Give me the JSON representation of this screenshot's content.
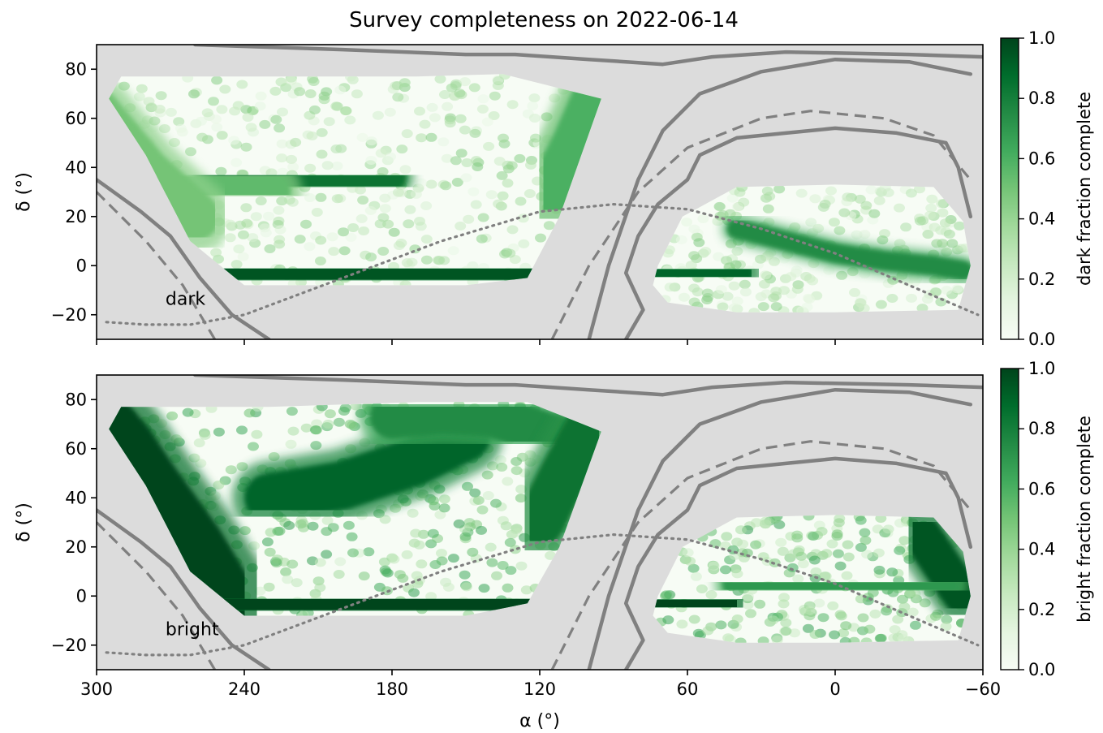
{
  "chart_data": {
    "type": "heatmap",
    "title": "Survey completeness on 2022-06-14",
    "xlabel": "α (°)",
    "xlim": [
      300,
      -60
    ],
    "xticks": [
      300,
      240,
      180,
      120,
      60,
      0,
      -60
    ],
    "xtick_labels": [
      "300",
      "240",
      "180",
      "120",
      "60",
      "0",
      "−60"
    ],
    "colorbar_ticks": [
      0.0,
      0.2,
      0.4,
      0.6,
      0.8,
      1.0
    ],
    "colorbar_tick_labels": [
      "0.0",
      "0.2",
      "0.4",
      "0.6",
      "0.8",
      "1.0"
    ],
    "colormap": [
      "#f7fcf5",
      "#e5f5e0",
      "#c7e9c0",
      "#a1d99b",
      "#74c476",
      "#41ab5d",
      "#238b45",
      "#006d2c",
      "#00441b"
    ],
    "background_color": "#dcdcdc",
    "contour_color": "#808080",
    "panels": [
      {
        "label": "dark",
        "ylabel": "δ (°)",
        "ylim": [
          -30,
          90
        ],
        "yticks": [
          -20,
          0,
          20,
          40,
          60,
          80
        ],
        "ytick_labels": [
          "−20",
          "0",
          "20",
          "40",
          "60",
          "80"
        ],
        "colorbar_label": "dark fraction complete",
        "regions": {
          "ngc_outline": [
            [
              295,
              68
            ],
            [
              290,
              77
            ],
            [
              230,
              77
            ],
            [
              170,
              77
            ],
            [
              135,
              78
            ],
            [
              95,
              68
            ],
            [
              112,
              20
            ],
            [
              125,
              -5
            ],
            [
              150,
              -8
            ],
            [
              240,
              -8
            ],
            [
              262,
              10
            ],
            [
              280,
              45
            ]
          ],
          "sgc_outline": [
            [
              72,
              0
            ],
            [
              62,
              20
            ],
            [
              40,
              32
            ],
            [
              0,
              33
            ],
            [
              -40,
              32
            ],
            [
              -52,
              18
            ],
            [
              -55,
              0
            ],
            [
              -50,
              -18
            ],
            [
              0,
              -19
            ],
            [
              40,
              -19
            ],
            [
              68,
              -15
            ],
            [
              74,
              -8
            ]
          ]
        },
        "features": [
          {
            "type": "band",
            "ra": [
              295,
              265,
              240,
              200,
              160,
              125,
              110
            ],
            "dec": [
              -4,
              -4,
              -5,
              -4,
              -4,
              -5,
              -2
            ],
            "value": 0.95,
            "width": 11
          },
          {
            "type": "band",
            "ra": [
              255,
              235,
              215,
              195,
              180
            ],
            "dec": [
              33,
              34,
              34,
              35,
              36
            ],
            "value": 0.85,
            "width": 6
          },
          {
            "type": "band",
            "ra": [
              285,
              250,
              230
            ],
            "dec": [
              35,
              33,
              30
            ],
            "value": 0.55,
            "width": 9
          },
          {
            "type": "band",
            "ra": [
              300,
              290,
              280,
              260
            ],
            "dec": [
              62,
              50,
              38,
              20
            ],
            "value": 0.5,
            "width": 10
          },
          {
            "type": "band",
            "ra": [
              115,
              105,
              98
            ],
            "dec": [
              30,
              50,
              66
            ],
            "value": 0.6,
            "width": 10
          },
          {
            "type": "band",
            "ra": [
              70,
              55,
              40
            ],
            "dec": [
              -2,
              -4,
              -3
            ],
            "value": 0.9,
            "width": 7
          },
          {
            "type": "band",
            "ra": [
              40,
              20,
              0,
              -20,
              -40,
              -52
            ],
            "dec": [
              15,
              10,
              5,
              2,
              0,
              -2
            ],
            "value": 0.75,
            "width": 4
          },
          {
            "type": "band",
            "ra": [
              40,
              20,
              0,
              -25,
              -50
            ],
            "dec": [
              0,
              0,
              0,
              0,
              0
            ],
            "value": 0.7,
            "width": 3
          }
        ]
      },
      {
        "label": "bright",
        "ylabel": "δ (°)",
        "ylim": [
          -30,
          90
        ],
        "yticks": [
          -20,
          0,
          20,
          40,
          60,
          80
        ],
        "ytick_labels": [
          "−20",
          "0",
          "20",
          "40",
          "60",
          "80"
        ],
        "colorbar_label": "bright fraction complete",
        "regions": {
          "ngc_outline": [
            [
              295,
              68
            ],
            [
              290,
              77
            ],
            [
              230,
              77
            ],
            [
              170,
              79
            ],
            [
              125,
              79
            ],
            [
              95,
              67
            ],
            [
              112,
              20
            ],
            [
              125,
              -3
            ],
            [
              150,
              -8
            ],
            [
              240,
              -8
            ],
            [
              262,
              10
            ],
            [
              280,
              45
            ]
          ],
          "sgc_outline": [
            [
              72,
              0
            ],
            [
              62,
              20
            ],
            [
              40,
              32
            ],
            [
              0,
              33
            ],
            [
              -40,
              32
            ],
            [
              -52,
              18
            ],
            [
              -55,
              0
            ],
            [
              -50,
              -18
            ],
            [
              0,
              -19
            ],
            [
              40,
              -19
            ],
            [
              68,
              -15
            ],
            [
              74,
              -8
            ]
          ]
        },
        "features": [
          {
            "type": "band",
            "ra": [
              300,
              290,
              280,
              262,
              250
            ],
            "dec": [
              72,
              60,
              45,
              20,
              0
            ],
            "value": 1.0,
            "width": 14
          },
          {
            "type": "band",
            "ra": [
              255,
              225,
              195,
              165,
              130,
              110
            ],
            "dec": [
              -3,
              -5,
              -5,
              -4,
              -4,
              -2
            ],
            "value": 1.0,
            "width": 12
          },
          {
            "type": "band",
            "ra": [
              230,
              200,
              170,
              150
            ],
            "dec": [
              40,
              45,
              55,
              65
            ],
            "value": 0.9,
            "width": 10
          },
          {
            "type": "band",
            "ra": [
              180,
              160,
              140,
              115
            ],
            "dec": [
              73,
              75,
              74,
              65
            ],
            "value": 0.75,
            "width": 9
          },
          {
            "type": "band",
            "ra": [
              120,
              110,
              100
            ],
            "dec": [
              30,
              50,
              68
            ],
            "value": 0.85,
            "width": 10
          },
          {
            "type": "band",
            "ra": [
              70,
              55,
              45
            ],
            "dec": [
              -2,
              -4,
              -3
            ],
            "value": 1.0,
            "width": 9
          },
          {
            "type": "band",
            "ra": [
              -35,
              -45,
              -52
            ],
            "dec": [
              25,
              10,
              0
            ],
            "value": 0.95,
            "width": 8
          },
          {
            "type": "band",
            "ra": [
              40,
              10,
              -20,
              -45
            ],
            "dec": [
              5,
              4,
              3,
              5
            ],
            "value": 0.7,
            "width": 6
          }
        ]
      }
    ],
    "overlays": {
      "galactic_plane_dotted": [
        [
          296,
          -23
        ],
        [
          280,
          -24
        ],
        [
          262,
          -24
        ],
        [
          240,
          -20
        ],
        [
          200,
          -5
        ],
        [
          160,
          10
        ],
        [
          120,
          22
        ],
        [
          90,
          25
        ],
        [
          60,
          23
        ],
        [
          30,
          15
        ],
        [
          0,
          5
        ],
        [
          -30,
          -8
        ],
        [
          -58,
          -20
        ]
      ],
      "dashed_curve_left": [
        [
          300,
          30
        ],
        [
          280,
          10
        ],
        [
          265,
          -8
        ],
        [
          252,
          -30
        ]
      ],
      "dashed_curve_right": [
        [
          115,
          -30
        ],
        [
          100,
          0
        ],
        [
          80,
          30
        ],
        [
          60,
          48
        ],
        [
          30,
          60
        ],
        [
          10,
          63
        ],
        [
          -20,
          60
        ],
        [
          -40,
          53
        ],
        [
          -55,
          35
        ]
      ],
      "galactic_contours": [
        [
          [
            300,
            35
          ],
          [
            282,
            22
          ],
          [
            270,
            12
          ],
          [
            258,
            -5
          ],
          [
            245,
            -20
          ],
          [
            230,
            -30
          ]
        ],
        [
          [
            100,
            -30
          ],
          [
            92,
            0
          ],
          [
            80,
            35
          ],
          [
            70,
            55
          ],
          [
            55,
            70
          ],
          [
            30,
            79
          ],
          [
            0,
            84
          ],
          [
            -30,
            83
          ],
          [
            -55,
            78
          ]
        ],
        [
          [
            260,
            90
          ],
          [
            200,
            88
          ],
          [
            150,
            86
          ],
          [
            130,
            86
          ],
          [
            100,
            84
          ],
          [
            70,
            82
          ],
          [
            50,
            85
          ],
          [
            20,
            87
          ],
          [
            -30,
            86
          ],
          [
            -60,
            85
          ]
        ],
        [
          [
            55,
            45
          ],
          [
            60,
            35
          ],
          [
            72,
            25
          ],
          [
            80,
            12
          ],
          [
            85,
            -3
          ],
          [
            78,
            -18
          ],
          [
            85,
            -30
          ]
        ],
        [
          [
            55,
            45
          ],
          [
            40,
            52
          ],
          [
            20,
            54
          ],
          [
            0,
            56
          ],
          [
            -25,
            54
          ],
          [
            -45,
            50
          ],
          [
            -50,
            40
          ],
          [
            -55,
            20
          ]
        ]
      ]
    }
  }
}
